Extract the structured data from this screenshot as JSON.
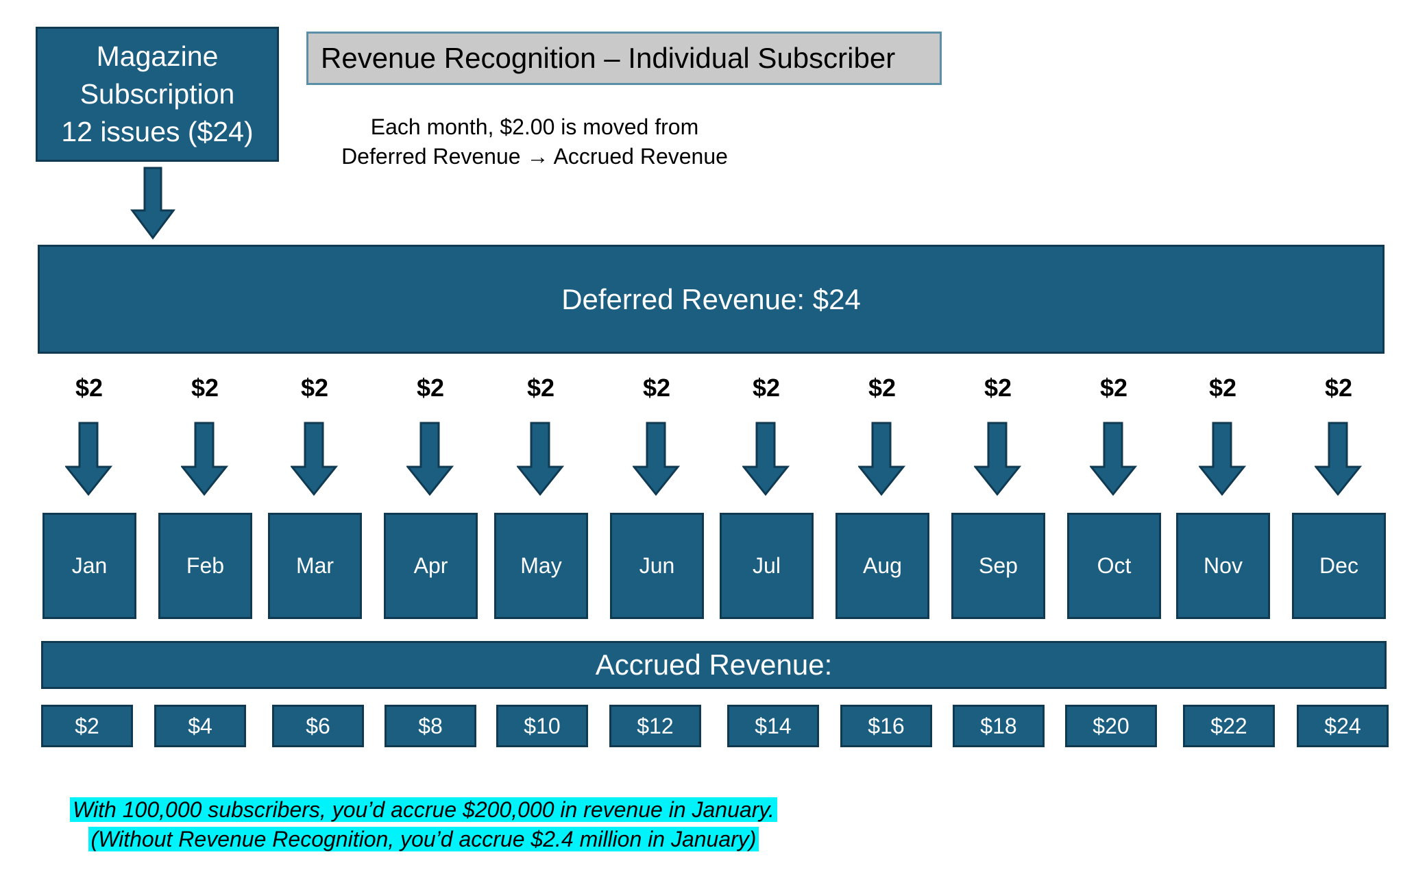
{
  "subscription": {
    "line1": "Magazine",
    "line2": "Subscription",
    "line3": "12 issues ($24)"
  },
  "title": "Revenue Recognition – Individual Subscriber",
  "note": {
    "line1": "Each month, $2.00 is moved from",
    "line2": "Deferred Revenue → Accrued Revenue"
  },
  "deferred": {
    "label": "Deferred Revenue: $24"
  },
  "monthly_amount": "$2",
  "months": [
    {
      "label": "Jan",
      "amount": "$2",
      "accrued": "$2"
    },
    {
      "label": "Feb",
      "amount": "$2",
      "accrued": "$4"
    },
    {
      "label": "Mar",
      "amount": "$2",
      "accrued": "$6"
    },
    {
      "label": "Apr",
      "amount": "$2",
      "accrued": "$8"
    },
    {
      "label": "May",
      "amount": "$2",
      "accrued": "$10"
    },
    {
      "label": "Jun",
      "amount": "$2",
      "accrued": "$12"
    },
    {
      "label": "Jul",
      "amount": "$2",
      "accrued": "$14"
    },
    {
      "label": "Aug",
      "amount": "$2",
      "accrued": "$16"
    },
    {
      "label": "Sep",
      "amount": "$2",
      "accrued": "$18"
    },
    {
      "label": "Oct",
      "amount": "$2",
      "accrued": "$20"
    },
    {
      "label": "Nov",
      "amount": "$2",
      "accrued": "$22"
    },
    {
      "label": "Dec",
      "amount": "$2",
      "accrued": "$24"
    }
  ],
  "accrued": {
    "label": "Accrued Revenue:"
  },
  "footer": {
    "line1": "With 100,000 subscribers, you’d accrue $200,000 in revenue in January.",
    "line2": "(Without Revenue Recognition, you’d accrue $2.4 million in January)"
  },
  "colors": {
    "box_fill": "#1b5e80",
    "box_border": "#0f3a52",
    "title_fill": "#c9c9c9",
    "highlight": "#00f2fa"
  }
}
